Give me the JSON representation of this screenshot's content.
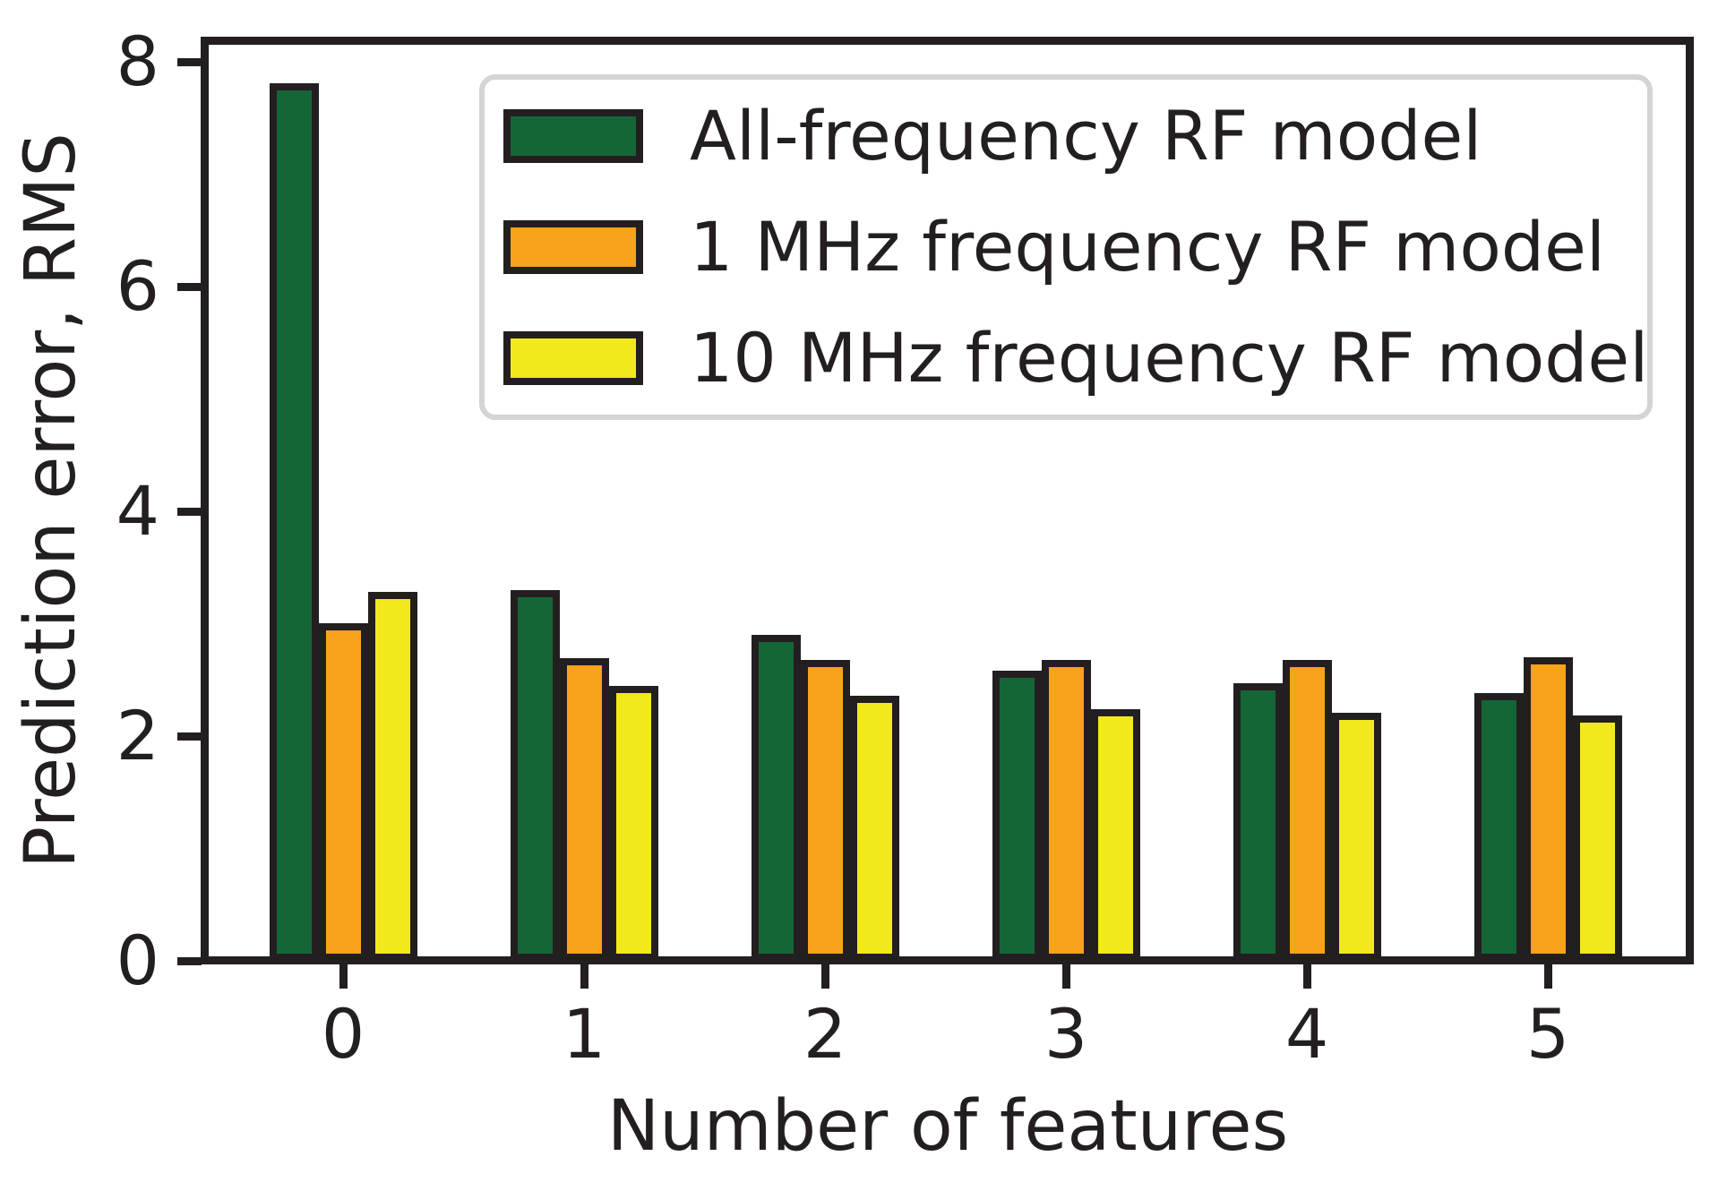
{
  "chart_data": {
    "type": "bar",
    "title": "",
    "xlabel": "Number of features",
    "ylabel": "Prediction error, RMS",
    "categories": [
      "0",
      "1",
      "2",
      "3",
      "4",
      "5"
    ],
    "series": [
      {
        "name": "All-frequency RF model",
        "key": "all-frequency-rf",
        "color": "#146636",
        "values": [
          7.81,
          3.3,
          2.9,
          2.58,
          2.47,
          2.38
        ]
      },
      {
        "name": "1 MHz frequency RF model",
        "key": "1mhz-rf",
        "color": "#F9A21C",
        "values": [
          3.0,
          2.69,
          2.68,
          2.68,
          2.68,
          2.7
        ]
      },
      {
        "name": "10 MHz frequency RF model",
        "key": "10mhz-rf",
        "color": "#F1E91C",
        "values": [
          3.28,
          2.45,
          2.36,
          2.24,
          2.21,
          2.18
        ]
      }
    ],
    "ylim": [
      0,
      8.15
    ],
    "yticks": [
      0,
      2,
      4,
      6,
      8
    ],
    "ytick_labels": [
      "0",
      "2",
      "4",
      "6",
      "8"
    ],
    "xticks_labels": [
      "0",
      "1",
      "2",
      "3",
      "4",
      "5"
    ],
    "grid": false,
    "legend_position": "upper right",
    "background_color": "#FFFFFF",
    "bar_edge_color": "#231F20",
    "legend_border_color": "#D4D4D4",
    "text_color": "#231F20"
  }
}
